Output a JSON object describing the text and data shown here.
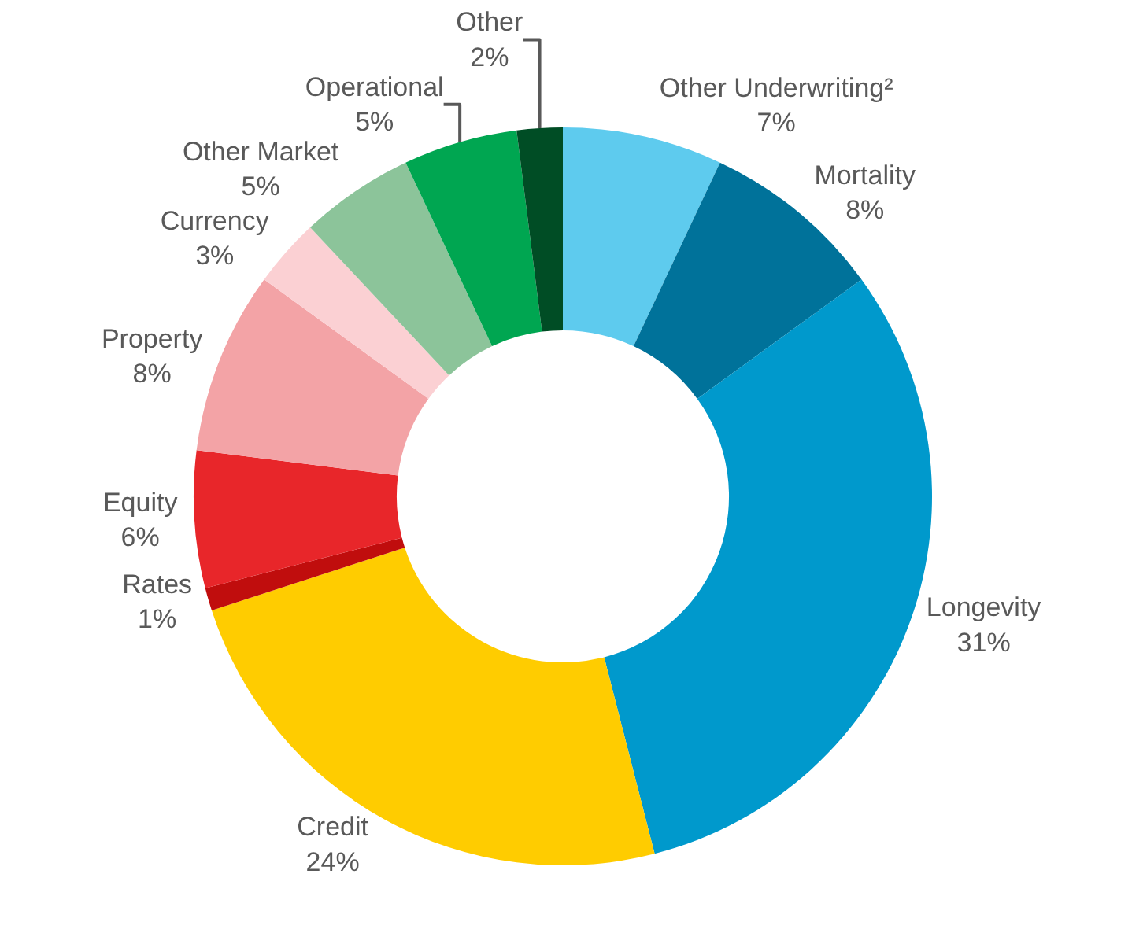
{
  "chart_data": {
    "type": "donut",
    "categories": [
      "Other Underwriting²",
      "Mortality",
      "Longevity",
      "Credit",
      "Rates",
      "Equity",
      "Property",
      "Currency",
      "Other Market",
      "Operational",
      "Other"
    ],
    "values": [
      7,
      8,
      31,
      24,
      1,
      6,
      8,
      3,
      5,
      5,
      2
    ],
    "value_labels": [
      "7%",
      "8%",
      "31%",
      "24%",
      "1%",
      "6%",
      "8%",
      "3%",
      "5%",
      "5%",
      "2%"
    ],
    "colors": [
      "#5ecbee",
      "#00729a",
      "#0099cc",
      "#ffcc00",
      "#c00d0d",
      "#e8262a",
      "#f3a3a6",
      "#fbd0d3",
      "#8cc49a",
      "#00a651",
      "#004d25"
    ],
    "legend": false
  }
}
